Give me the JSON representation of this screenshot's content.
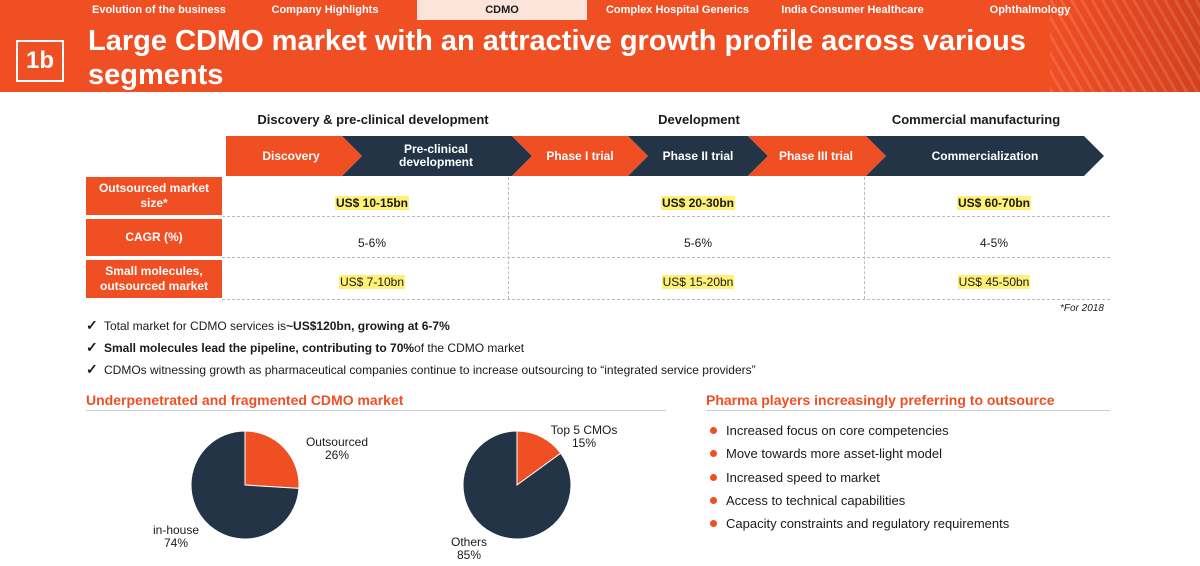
{
  "nav": {
    "tabs": [
      {
        "label": "Evolution of the business",
        "active": false
      },
      {
        "label": "Company Highlights",
        "active": false
      },
      {
        "label": "CDMO",
        "active": true
      },
      {
        "label": "Complex Hospital Generics",
        "active": false
      },
      {
        "label": "India Consumer Healthcare",
        "active": false
      },
      {
        "label": "Ophthalmology",
        "active": false
      }
    ]
  },
  "header": {
    "badge": "1b",
    "title": "Large CDMO market with an attractive growth profile across various segments"
  },
  "groups": [
    "Discovery & pre-clinical development",
    "Development",
    "Commercial manufacturing"
  ],
  "stages": [
    "Discovery",
    "Pre-clinical development",
    "Phase I trial",
    "Phase II trial",
    "Phase III trial",
    "Commercialization"
  ],
  "rows": [
    {
      "label": "Outsourced market size*",
      "values": [
        "US$ 10-15bn",
        "US$ 20-30bn",
        "US$ 60-70bn"
      ]
    },
    {
      "label": "CAGR (%)",
      "values": [
        "5-6%",
        "5-6%",
        "4-5%"
      ]
    },
    {
      "label": "Small molecules, outsourced market",
      "values": [
        "US$ 7-10bn",
        "US$ 15-20bn",
        "US$ 45-50bn"
      ]
    }
  ],
  "footnote": "*For 2018",
  "bullets": [
    {
      "pre": "Total market for CDMO services is ",
      "bold": "~US$120bn, growing at 6-7%",
      "post": ""
    },
    {
      "pre": "",
      "bold": "Small molecules lead the pipeline, contributing to 70%",
      "post": " of the CDMO market"
    },
    {
      "pre": "CDMOs witnessing growth as pharmaceutical companies continue to increase outsourcing to “integrated service providers”",
      "bold": "",
      "post": ""
    }
  ],
  "left_section": {
    "title": "Underpenetrated and fragmented CDMO market"
  },
  "right_section": {
    "title": "Pharma players increasingly preferring to outsource",
    "items": [
      "Increased focus on core competencies",
      "Move towards more asset-light model",
      "Increased speed to market",
      "Access to technical capabilities",
      "Capacity constraints and regulatory requirements"
    ]
  },
  "colors": {
    "accent": "#f04e23",
    "navy": "#243447",
    "highlight": "#fff176"
  },
  "chart_data": [
    {
      "type": "pie",
      "title": "",
      "categories": [
        "Outsourced",
        "in-house"
      ],
      "values": [
        26,
        74
      ],
      "labels": [
        "Outsourced",
        "in-house"
      ],
      "value_labels": [
        "26%",
        "74%"
      ],
      "colors": [
        "#f04e23",
        "#243447"
      ]
    },
    {
      "type": "pie",
      "title": "",
      "categories": [
        "Top 5 CMOs",
        "Others"
      ],
      "values": [
        15,
        85
      ],
      "labels": [
        "Top 5 CMOs",
        "Others"
      ],
      "value_labels": [
        "15%",
        "85%"
      ],
      "colors": [
        "#f04e23",
        "#243447"
      ]
    }
  ]
}
